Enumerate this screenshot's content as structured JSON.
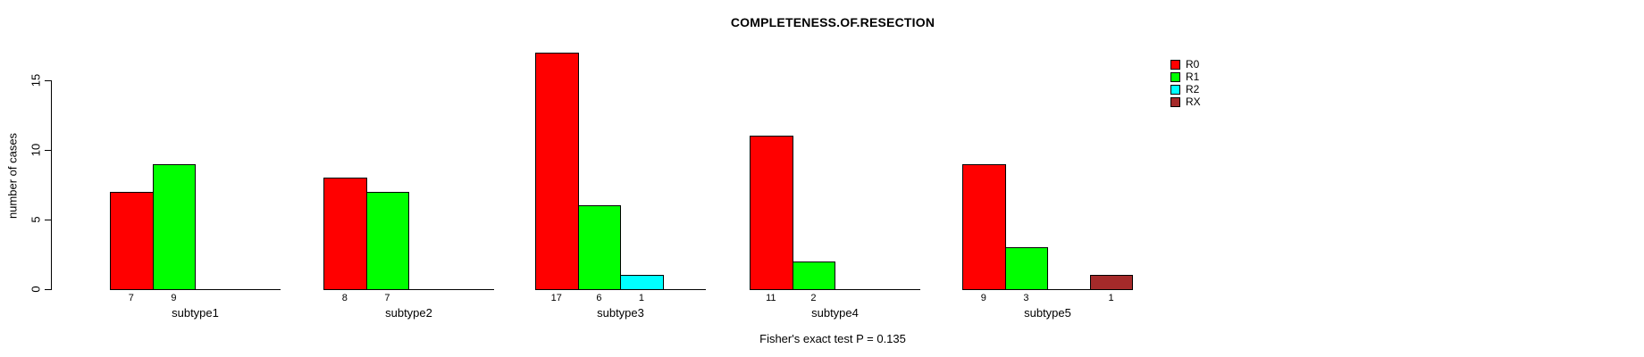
{
  "title": "COMPLETENESS.OF.RESECTION",
  "caption": "Fisher's exact test P = 0.135",
  "chart_data": {
    "type": "bar",
    "title": "COMPLETENESS.OF.RESECTION",
    "xlabel": "",
    "ylabel": "number of cases",
    "ylim": [
      0,
      17
    ],
    "yticks": [
      0,
      5,
      10,
      15
    ],
    "grid": false,
    "legend_position": "top-right",
    "bar_value_labels": true,
    "categories": [
      "subtype1",
      "subtype2",
      "subtype3",
      "subtype4",
      "subtype5"
    ],
    "series": [
      {
        "name": "R0",
        "color": "#FF0000",
        "values": [
          7,
          8,
          17,
          11,
          9
        ]
      },
      {
        "name": "R1",
        "color": "#00FF00",
        "values": [
          9,
          7,
          6,
          2,
          3
        ]
      },
      {
        "name": "R2",
        "color": "#00FFFF",
        "values": [
          0,
          0,
          1,
          0,
          0
        ]
      },
      {
        "name": "RX",
        "color": "#A52A2A",
        "values": [
          0,
          0,
          0,
          0,
          1
        ]
      }
    ],
    "annotation": "Fisher's exact test P = 0.135"
  }
}
